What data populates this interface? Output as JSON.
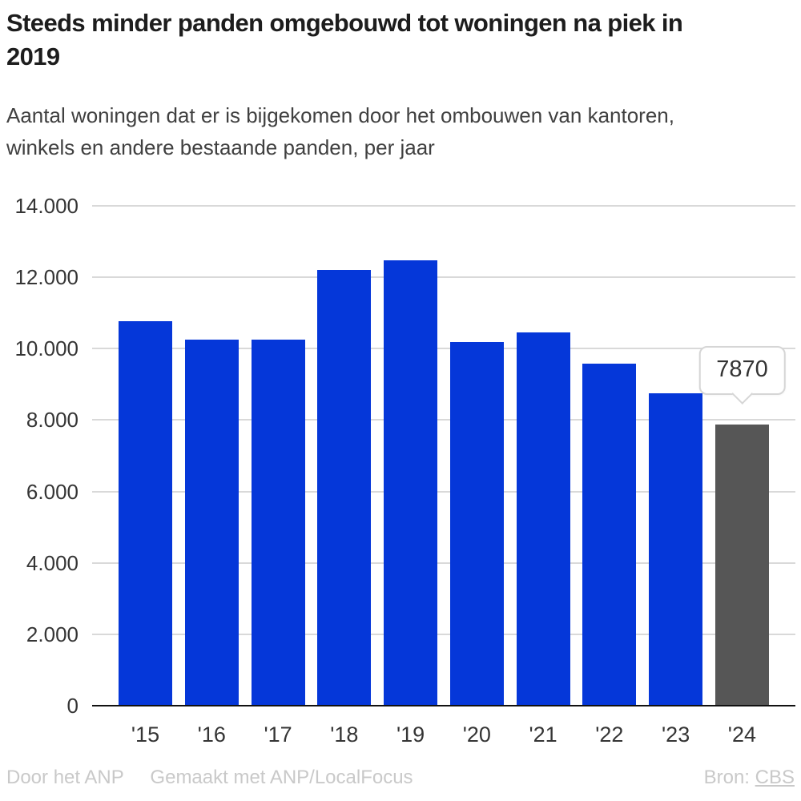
{
  "header": {
    "title": "Steeds minder panden omgebouwd tot woningen na piek in\n2019",
    "subtitle": "Aantal woningen dat er is bijgekomen door het ombouwen van kantoren,\nwinkels en andere bestaande panden, per jaar"
  },
  "chart_data": {
    "type": "bar",
    "categories": [
      "'15",
      "'16",
      "'17",
      "'18",
      "'19",
      "'20",
      "'21",
      "'22",
      "'23",
      "'24"
    ],
    "values": [
      10780,
      10250,
      10250,
      12210,
      12480,
      10190,
      10460,
      9570,
      8760,
      7870
    ],
    "title": "Steeds minder panden omgebouwd tot woningen na piek in 2019",
    "xlabel": "",
    "ylabel": "",
    "ylim": [
      0,
      14000
    ],
    "yticks": [
      0,
      2000,
      4000,
      6000,
      8000,
      10000,
      12000,
      14000
    ],
    "ytick_labels": [
      "0",
      "2.000",
      "4.000",
      "6.000",
      "8.000",
      "10.000",
      "12.000",
      "14.000"
    ],
    "grid": true,
    "legend": "none",
    "colors": {
      "default": "#0537d9",
      "highlight": "#565656"
    },
    "highlight_index": 9,
    "tooltip": {
      "index": 9,
      "label": "7870"
    }
  },
  "footer": {
    "credit_author": "Door het ANP",
    "credit_tool": "Gemaakt met ANP/LocalFocus",
    "source_label": "Bron:",
    "source_link": "CBS"
  }
}
